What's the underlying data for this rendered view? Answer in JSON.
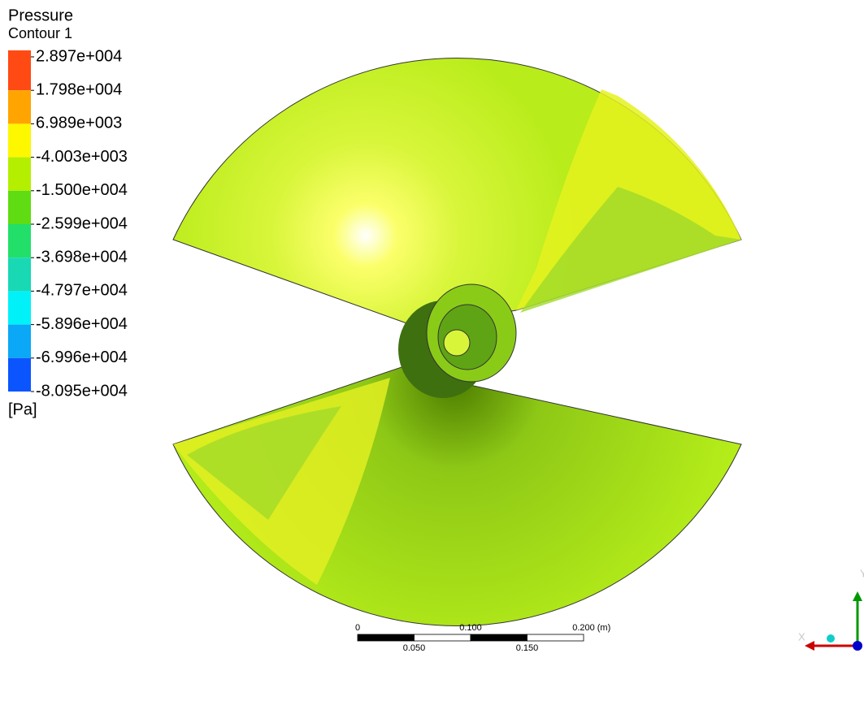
{
  "legend": {
    "title": "Pressure",
    "subtitle": "Contour 1",
    "unit": "[Pa]",
    "labels": [
      "2.897e+004",
      "1.798e+004",
      "6.989e+003",
      "-4.003e+003",
      "-1.500e+004",
      "-2.599e+004",
      "-3.698e+004",
      "-4.797e+004",
      "-5.896e+004",
      "-6.996e+004",
      "-8.095e+004"
    ],
    "colors": [
      "#ff4a14",
      "#ffa400",
      "#fdf700",
      "#b4ef00",
      "#5fdc12",
      "#22df6a",
      "#18d9b4",
      "#00f2f8",
      "#0aa8f6",
      "#0b55ff"
    ]
  },
  "scale_bar": {
    "top_labels": [
      "0",
      "0.100",
      "0.200",
      "(m)"
    ],
    "bottom_labels": [
      "0.050",
      "0.150"
    ]
  },
  "triad": {
    "x_label": "X",
    "y_label": "Y"
  }
}
